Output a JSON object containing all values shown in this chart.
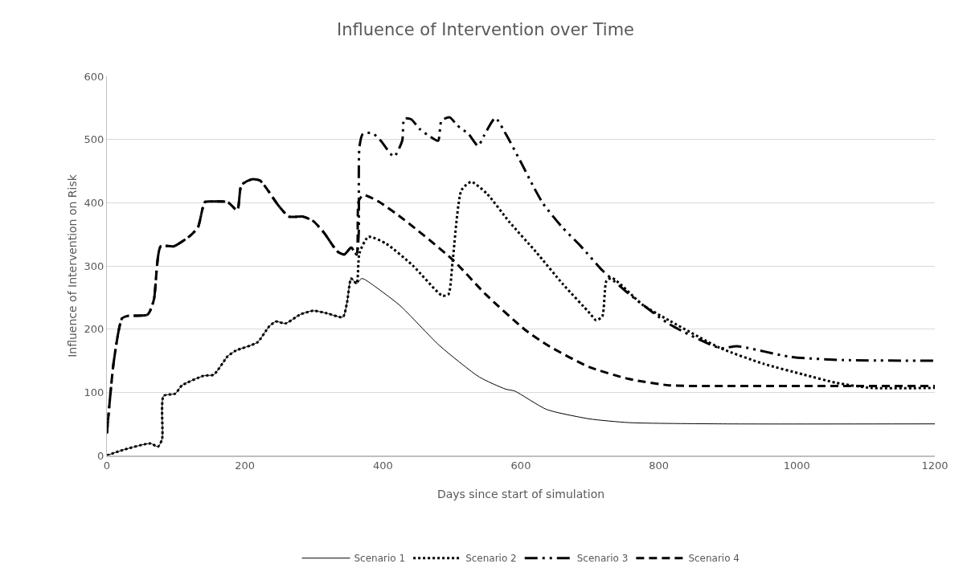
{
  "chart_data": {
    "type": "line",
    "title": "Influence of Intervention over Time",
    "xlabel": "Days since start of simulation",
    "ylabel": "Influence of Intervention on Risk",
    "xlim": [
      0,
      1200
    ],
    "xticks": [
      0,
      200,
      400,
      600,
      800,
      1000,
      1200
    ],
    "ylim": [
      0,
      600
    ],
    "yticks": [
      0,
      100,
      200,
      300,
      400,
      500,
      600
    ],
    "grid": "y",
    "legend": "bottom",
    "marker": "none",
    "series": [
      {
        "name": "Scenario 1",
        "color": "#000000",
        "line_style": "solid",
        "x": [
          0,
          24,
          63,
          74,
          80,
          82,
          99,
          109,
          140,
          155,
          175,
          187,
          218,
          235,
          245,
          259,
          280,
          299,
          319,
          342,
          348,
          354,
          362,
          369,
          373,
          424,
          482,
          540,
          578,
          591,
          637,
          699,
          757,
          893,
          1200
        ],
        "values": [
          0,
          9,
          19,
          14,
          26,
          94,
          98,
          111,
          126,
          128,
          157,
          166,
          179,
          204,
          212,
          209,
          223,
          229,
          225,
          219,
          242,
          280,
          272,
          280,
          279,
          238,
          174,
          124,
          105,
          102,
          73,
          58,
          52,
          50,
          50
        ]
      },
      {
        "name": "Scenario 2",
        "color": "#000000",
        "line_style": "dotted",
        "x": [
          0,
          24,
          63,
          74,
          80,
          82,
          99,
          109,
          140,
          155,
          175,
          187,
          218,
          235,
          245,
          259,
          280,
          299,
          319,
          342,
          348,
          354,
          362,
          366,
          379,
          405,
          443,
          486,
          495,
          501,
          514,
          528,
          551,
          583,
          622,
          661,
          700,
          709,
          718,
          724,
          732,
          777,
          816,
          889,
          952,
          1010,
          1057,
          1107,
          1200
        ],
        "values": [
          0,
          9,
          19,
          14,
          26,
          94,
          98,
          111,
          126,
          128,
          157,
          166,
          179,
          204,
          212,
          209,
          223,
          229,
          225,
          219,
          242,
          280,
          272,
          320,
          346,
          335,
          301,
          253,
          255,
          306,
          420,
          433,
          414,
          370,
          322,
          271,
          225,
          214,
          220,
          276,
          281,
          238,
          213,
          170,
          145,
          128,
          115,
          107,
          107
        ]
      },
      {
        "name": "Scenario 3",
        "color": "#000000",
        "line_style": "dashdot",
        "x": [
          0,
          10,
          22,
          31,
          59,
          68,
          78,
          97,
          121,
          132,
          142,
          152,
          175,
          189,
          195,
          210,
          222,
          249,
          264,
          284,
          299,
          315,
          334,
          344,
          354,
          362,
          365,
          366,
          371,
          385,
          397,
          416,
          428,
          431,
          441,
          453,
          468,
          480,
          485,
          497,
          508,
          524,
          538,
          547,
          563,
          578,
          602,
          617,
          632,
          660,
          687,
          718,
          730,
          753,
          815,
          889,
          913,
          991,
          1068,
          1200
        ],
        "values": [
          35,
          149,
          217,
          221,
          223,
          246,
          331,
          331,
          348,
          361,
          401,
          402,
          401,
          388,
          428,
          437,
          435,
          395,
          378,
          378,
          371,
          352,
          323,
          318,
          329,
          318,
          352,
          488,
          509,
          510,
          498,
          473,
          498,
          533,
          532,
          517,
          505,
          498,
          530,
          535,
          522,
          509,
          490,
          507,
          534,
          509,
          460,
          428,
          399,
          361,
          331,
          293,
          281,
          259,
          208,
          170,
          173,
          156,
          151,
          150
        ]
      },
      {
        "name": "Scenario 4",
        "color": "#000000",
        "line_style": "dashed",
        "x": [
          0,
          10,
          22,
          31,
          59,
          68,
          78,
          97,
          121,
          132,
          142,
          152,
          175,
          189,
          195,
          210,
          222,
          249,
          264,
          284,
          299,
          315,
          334,
          344,
          354,
          362,
          365,
          372,
          392,
          431,
          501,
          549,
          606,
          641,
          699,
          757,
          815,
          893,
          1200
        ],
        "values": [
          35,
          149,
          217,
          221,
          223,
          246,
          331,
          331,
          348,
          361,
          401,
          402,
          401,
          388,
          428,
          437,
          435,
          395,
          378,
          378,
          371,
          352,
          323,
          318,
          329,
          318,
          403,
          412,
          403,
          373,
          310,
          255,
          199,
          173,
          140,
          121,
          111,
          110,
          110
        ]
      }
    ]
  }
}
